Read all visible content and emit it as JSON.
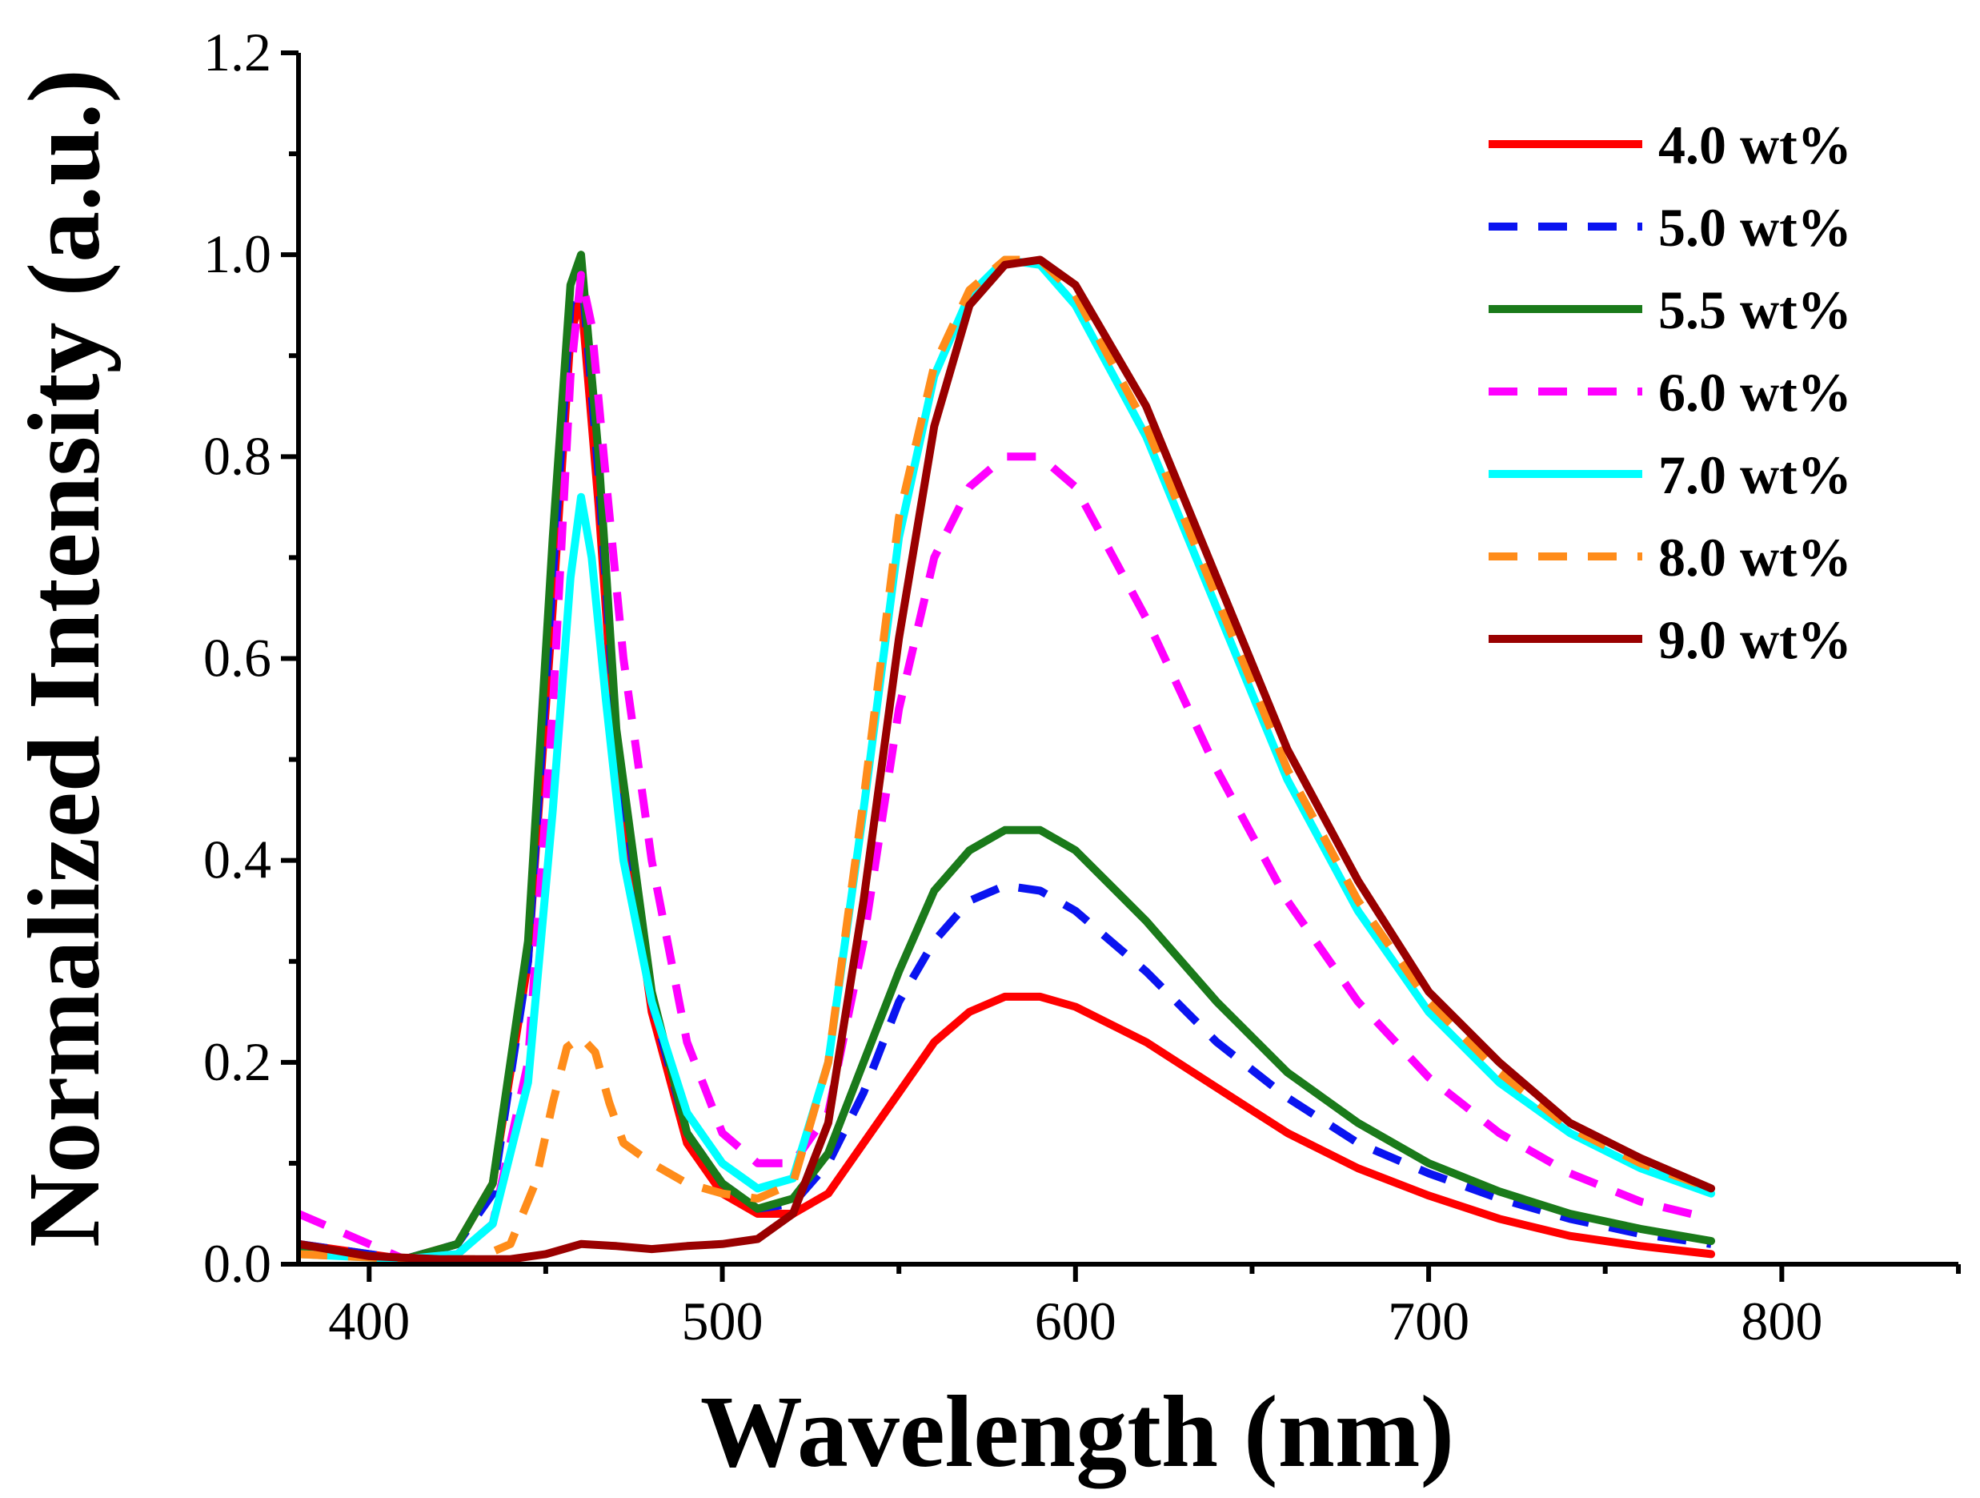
{
  "chart_data": {
    "type": "line",
    "title": "",
    "xlabel": "Wavelength (nm)",
    "ylabel": "Normalized Intensity (a.u.)",
    "xlim": [
      380,
      850
    ],
    "ylim": [
      0.0,
      1.2
    ],
    "xticks": [
      400,
      500,
      600,
      700,
      800
    ],
    "xtick_labels": [
      "400",
      "500",
      "600",
      "700",
      "800"
    ],
    "yticks": [
      0.0,
      0.2,
      0.4,
      0.6,
      0.8,
      1.0,
      1.2
    ],
    "ytick_labels": [
      "0.0",
      "0.2",
      "0.4",
      "0.6",
      "0.8",
      "1.0",
      "1.2"
    ],
    "grid": false,
    "legend_position": "top-right",
    "series": [
      {
        "name": "4.0 wt%",
        "color": "#ff0000",
        "style": "solid",
        "x": [
          380,
          410,
          425,
          435,
          445,
          452,
          457,
          460,
          465,
          470,
          480,
          490,
          500,
          510,
          520,
          530,
          540,
          550,
          560,
          570,
          580,
          590,
          600,
          620,
          640,
          660,
          680,
          700,
          720,
          740,
          760,
          780
        ],
        "y": [
          0.02,
          0.005,
          0.02,
          0.08,
          0.3,
          0.65,
          0.92,
          0.96,
          0.75,
          0.5,
          0.25,
          0.12,
          0.07,
          0.05,
          0.05,
          0.07,
          0.12,
          0.17,
          0.22,
          0.25,
          0.265,
          0.265,
          0.255,
          0.22,
          0.175,
          0.13,
          0.095,
          0.068,
          0.045,
          0.028,
          0.018,
          0.01
        ]
      },
      {
        "name": "5.0 wt%",
        "color": "#0a14f0",
        "style": "dashed",
        "x": [
          380,
          410,
          425,
          435,
          445,
          452,
          457,
          460,
          465,
          470,
          480,
          490,
          500,
          510,
          520,
          530,
          540,
          550,
          560,
          570,
          580,
          590,
          600,
          620,
          640,
          660,
          680,
          700,
          720,
          740,
          760,
          780
        ],
        "y": [
          0.02,
          0.005,
          0.02,
          0.07,
          0.3,
          0.68,
          0.95,
          0.99,
          0.78,
          0.52,
          0.26,
          0.13,
          0.08,
          0.055,
          0.06,
          0.1,
          0.17,
          0.26,
          0.32,
          0.36,
          0.375,
          0.37,
          0.35,
          0.29,
          0.22,
          0.165,
          0.12,
          0.09,
          0.065,
          0.045,
          0.03,
          0.02
        ]
      },
      {
        "name": "5.5 wt%",
        "color": "#1a7a1a",
        "style": "solid",
        "x": [
          380,
          410,
          425,
          435,
          445,
          452,
          457,
          460,
          465,
          470,
          480,
          490,
          500,
          510,
          520,
          530,
          540,
          550,
          560,
          570,
          580,
          590,
          600,
          620,
          640,
          660,
          680,
          700,
          720,
          740,
          760,
          780
        ],
        "y": [
          0.015,
          0.005,
          0.02,
          0.08,
          0.32,
          0.72,
          0.97,
          1.0,
          0.8,
          0.53,
          0.27,
          0.13,
          0.08,
          0.055,
          0.065,
          0.11,
          0.2,
          0.29,
          0.37,
          0.41,
          0.43,
          0.43,
          0.41,
          0.34,
          0.26,
          0.19,
          0.14,
          0.1,
          0.072,
          0.05,
          0.035,
          0.023
        ]
      },
      {
        "name": "6.0 wt%",
        "color": "#ff00ff",
        "style": "dashed",
        "x": [
          380,
          410,
          425,
          435,
          445,
          452,
          457,
          460,
          463,
          467,
          472,
          480,
          490,
          500,
          510,
          520,
          530,
          540,
          550,
          560,
          570,
          580,
          590,
          600,
          620,
          640,
          660,
          680,
          700,
          720,
          740,
          760,
          780
        ],
        "y": [
          0.05,
          0.005,
          0.01,
          0.04,
          0.2,
          0.55,
          0.88,
          0.98,
          0.93,
          0.78,
          0.6,
          0.4,
          0.22,
          0.13,
          0.1,
          0.1,
          0.15,
          0.32,
          0.55,
          0.7,
          0.77,
          0.8,
          0.8,
          0.77,
          0.64,
          0.49,
          0.36,
          0.26,
          0.185,
          0.13,
          0.09,
          0.062,
          0.045
        ]
      },
      {
        "name": "7.0 wt%",
        "color": "#00ffff",
        "style": "solid",
        "x": [
          380,
          410,
          425,
          435,
          445,
          452,
          457,
          460,
          463,
          467,
          472,
          480,
          490,
          500,
          510,
          520,
          530,
          540,
          550,
          560,
          570,
          580,
          590,
          600,
          620,
          640,
          660,
          680,
          700,
          720,
          740,
          760,
          780
        ],
        "y": [
          0.01,
          0.005,
          0.01,
          0.04,
          0.18,
          0.45,
          0.68,
          0.76,
          0.7,
          0.56,
          0.4,
          0.26,
          0.15,
          0.1,
          0.075,
          0.085,
          0.2,
          0.45,
          0.72,
          0.88,
          0.96,
          0.995,
          0.99,
          0.95,
          0.82,
          0.65,
          0.48,
          0.35,
          0.25,
          0.18,
          0.13,
          0.095,
          0.07
        ]
      },
      {
        "name": "8.0 wt%",
        "color": "#ff8c1a",
        "style": "dashed",
        "x": [
          380,
          410,
          430,
          440,
          447,
          452,
          456,
          460,
          464,
          468,
          472,
          480,
          490,
          500,
          510,
          520,
          530,
          540,
          550,
          560,
          570,
          580,
          590,
          600,
          620,
          640,
          660,
          680,
          700,
          720,
          740,
          760,
          780
        ],
        "y": [
          0.01,
          0.005,
          0.005,
          0.02,
          0.08,
          0.16,
          0.215,
          0.225,
          0.21,
          0.16,
          0.12,
          0.1,
          0.08,
          0.07,
          0.065,
          0.08,
          0.2,
          0.46,
          0.74,
          0.89,
          0.965,
          0.995,
          0.995,
          0.96,
          0.83,
          0.66,
          0.49,
          0.36,
          0.26,
          0.19,
          0.135,
          0.1,
          0.075
        ]
      },
      {
        "name": "9.0 wt%",
        "color": "#990000",
        "style": "solid",
        "x": [
          380,
          400,
          420,
          440,
          450,
          460,
          470,
          480,
          490,
          500,
          510,
          520,
          530,
          540,
          550,
          560,
          570,
          580,
          590,
          600,
          620,
          640,
          660,
          680,
          700,
          720,
          740,
          760,
          780
        ],
        "y": [
          0.02,
          0.008,
          0.005,
          0.005,
          0.01,
          0.02,
          0.018,
          0.015,
          0.018,
          0.02,
          0.025,
          0.05,
          0.14,
          0.36,
          0.62,
          0.83,
          0.95,
          0.99,
          0.995,
          0.97,
          0.85,
          0.68,
          0.51,
          0.38,
          0.27,
          0.2,
          0.14,
          0.105,
          0.075
        ]
      }
    ]
  }
}
